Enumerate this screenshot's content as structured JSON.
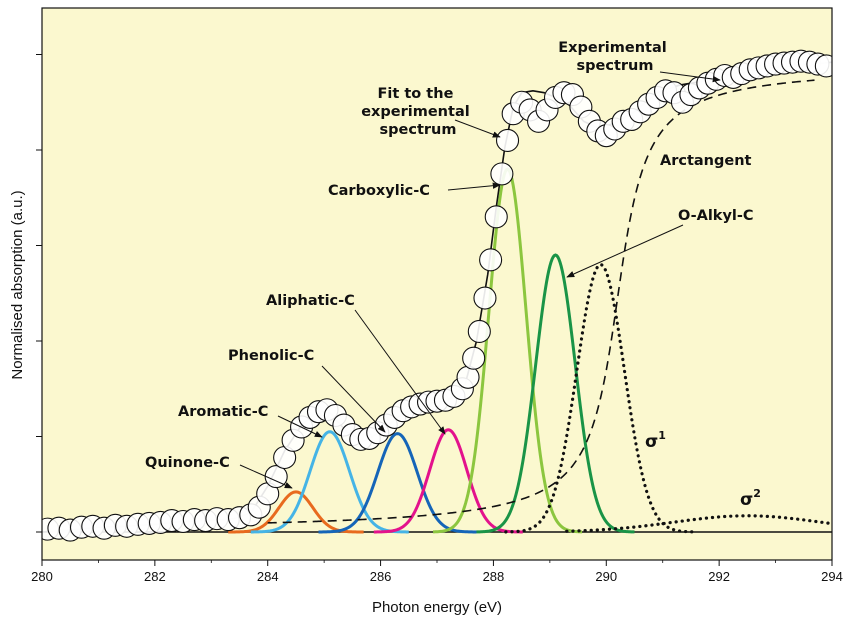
{
  "chart_data": {
    "type": "line",
    "title": "",
    "xlabel": "Photon energy (eV)",
    "ylabel": "Normalised absorption (a.u.)",
    "xlim": [
      280,
      294
    ],
    "ylim": [
      0,
      5.3
    ],
    "x_ticks": [
      "280",
      "282",
      "284",
      "286",
      "288",
      "290",
      "292",
      "294"
    ],
    "y_tick_count": 6,
    "background": "#fbf8cf",
    "annotations": {
      "experimental": "Experimental spectrum",
      "experimental_lines": [
        "Experimental",
        "spectrum"
      ],
      "fit": "Fit to the experimental spectrum",
      "fit_lines": [
        "Fit to the",
        "experimental",
        "spectrum"
      ],
      "arctangent": "Arctangent",
      "carboxylic": "Carboxylic-C",
      "o_alkyl": "O-Alkyl-C",
      "aliphatic": "Aliphatic-C",
      "phenolic": "Phenolic-C",
      "aromatic": "Aromatic-C",
      "quinone": "Quinone-C",
      "sigma1_base": "σ",
      "sigma1_sup": "1",
      "sigma2_base": "σ",
      "sigma2_sup": "2"
    },
    "series": [
      {
        "name": "Quinone-C",
        "type": "gaussian",
        "center": 284.5,
        "height": 0.42,
        "width": 0.3,
        "color": "#e86a1e"
      },
      {
        "name": "Aromatic-C",
        "type": "gaussian",
        "center": 285.1,
        "height": 1.05,
        "width": 0.35,
        "color": "#45b4e6"
      },
      {
        "name": "Phenolic-C",
        "type": "gaussian",
        "center": 286.3,
        "height": 1.03,
        "width": 0.35,
        "color": "#1565b8"
      },
      {
        "name": "Aliphatic-C",
        "type": "gaussian",
        "center": 287.2,
        "height": 1.07,
        "width": 0.33,
        "color": "#e3128c"
      },
      {
        "name": "Carboxylic-C",
        "type": "gaussian",
        "center": 288.25,
        "height": 3.8,
        "width": 0.33,
        "color": "#8cc63f"
      },
      {
        "name": "O-Alkyl-C",
        "type": "gaussian",
        "center": 289.1,
        "height": 2.9,
        "width": 0.35,
        "color": "#1a9447"
      },
      {
        "name": "σ1",
        "type": "gaussian",
        "style": "dotted",
        "center": 289.9,
        "height": 2.8,
        "width": 0.42,
        "color": "#111111"
      },
      {
        "name": "σ2",
        "type": "gaussian",
        "style": "dotted",
        "center": 292.5,
        "height": 0.17,
        "width": 1.3,
        "color": "#111111"
      },
      {
        "name": "Arctangent",
        "type": "arctangent",
        "style": "dashed",
        "step_center": 290.2,
        "step_height": 4.9,
        "step_width": 0.38,
        "color": "#111111"
      },
      {
        "name": "Fit to the experimental spectrum",
        "type": "line",
        "color": "#111111",
        "x": [
          280.0,
          280.5,
          281.0,
          281.5,
          282.0,
          282.5,
          283.0,
          283.4,
          283.7,
          284.0,
          284.3,
          284.6,
          284.9,
          285.1,
          285.4,
          285.7,
          286.0,
          286.3,
          286.6,
          286.9,
          287.2,
          287.5,
          287.7,
          287.9,
          288.05,
          288.2,
          288.35,
          288.5,
          288.7,
          288.9,
          289.1,
          289.3,
          289.6,
          289.9,
          290.2,
          290.5,
          290.9,
          291.3,
          291.7,
          292.1,
          292.5,
          292.9,
          293.3,
          293.7,
          294.0
        ],
        "y": [
          0.0,
          0.02,
          0.05,
          0.06,
          0.08,
          0.11,
          0.12,
          0.14,
          0.2,
          0.48,
          0.85,
          1.12,
          1.27,
          1.25,
          1.05,
          0.95,
          1.05,
          1.2,
          1.3,
          1.35,
          1.38,
          1.55,
          2.0,
          2.7,
          3.4,
          4.02,
          4.45,
          4.6,
          4.62,
          4.6,
          4.55,
          4.5,
          4.3,
          4.22,
          4.3,
          4.4,
          4.6,
          4.68,
          4.72,
          4.78,
          4.82,
          4.86,
          4.88,
          4.9,
          4.92
        ]
      },
      {
        "name": "Experimental spectrum",
        "type": "scatter",
        "marker": "open-circle",
        "color": "#111111",
        "x": [
          280.1,
          280.3,
          280.5,
          280.7,
          280.9,
          281.1,
          281.3,
          281.5,
          281.7,
          281.9,
          282.1,
          282.3,
          282.5,
          282.7,
          282.9,
          283.1,
          283.3,
          283.5,
          283.7,
          283.85,
          284.0,
          284.15,
          284.3,
          284.45,
          284.6,
          284.75,
          284.9,
          285.05,
          285.2,
          285.35,
          285.5,
          285.65,
          285.8,
          285.95,
          286.1,
          286.25,
          286.4,
          286.55,
          286.7,
          286.85,
          287.0,
          287.15,
          287.3,
          287.45,
          287.55,
          287.65,
          287.75,
          287.85,
          287.95,
          288.05,
          288.15,
          288.25,
          288.35,
          288.5,
          288.65,
          288.8,
          288.95,
          289.1,
          289.25,
          289.4,
          289.55,
          289.7,
          289.85,
          290.0,
          290.15,
          290.3,
          290.45,
          290.6,
          290.75,
          290.9,
          291.05,
          291.2,
          291.35,
          291.5,
          291.65,
          291.8,
          291.95,
          292.1,
          292.25,
          292.4,
          292.55,
          292.7,
          292.85,
          293.0,
          293.15,
          293.3,
          293.45,
          293.6,
          293.75,
          293.9
        ],
        "y": [
          0.03,
          0.04,
          0.02,
          0.05,
          0.06,
          0.04,
          0.07,
          0.06,
          0.08,
          0.09,
          0.1,
          0.12,
          0.11,
          0.13,
          0.12,
          0.14,
          0.13,
          0.15,
          0.18,
          0.26,
          0.4,
          0.58,
          0.78,
          0.96,
          1.1,
          1.2,
          1.26,
          1.28,
          1.22,
          1.12,
          1.02,
          0.97,
          0.98,
          1.04,
          1.12,
          1.2,
          1.27,
          1.31,
          1.34,
          1.36,
          1.37,
          1.38,
          1.42,
          1.5,
          1.62,
          1.82,
          2.1,
          2.45,
          2.85,
          3.3,
          3.75,
          4.1,
          4.38,
          4.5,
          4.42,
          4.3,
          4.42,
          4.55,
          4.6,
          4.58,
          4.45,
          4.3,
          4.2,
          4.15,
          4.22,
          4.3,
          4.32,
          4.4,
          4.48,
          4.55,
          4.62,
          4.6,
          4.5,
          4.58,
          4.65,
          4.7,
          4.74,
          4.78,
          4.76,
          4.8,
          4.84,
          4.86,
          4.88,
          4.9,
          4.91,
          4.92,
          4.93,
          4.92,
          4.9,
          4.88
        ]
      }
    ]
  }
}
